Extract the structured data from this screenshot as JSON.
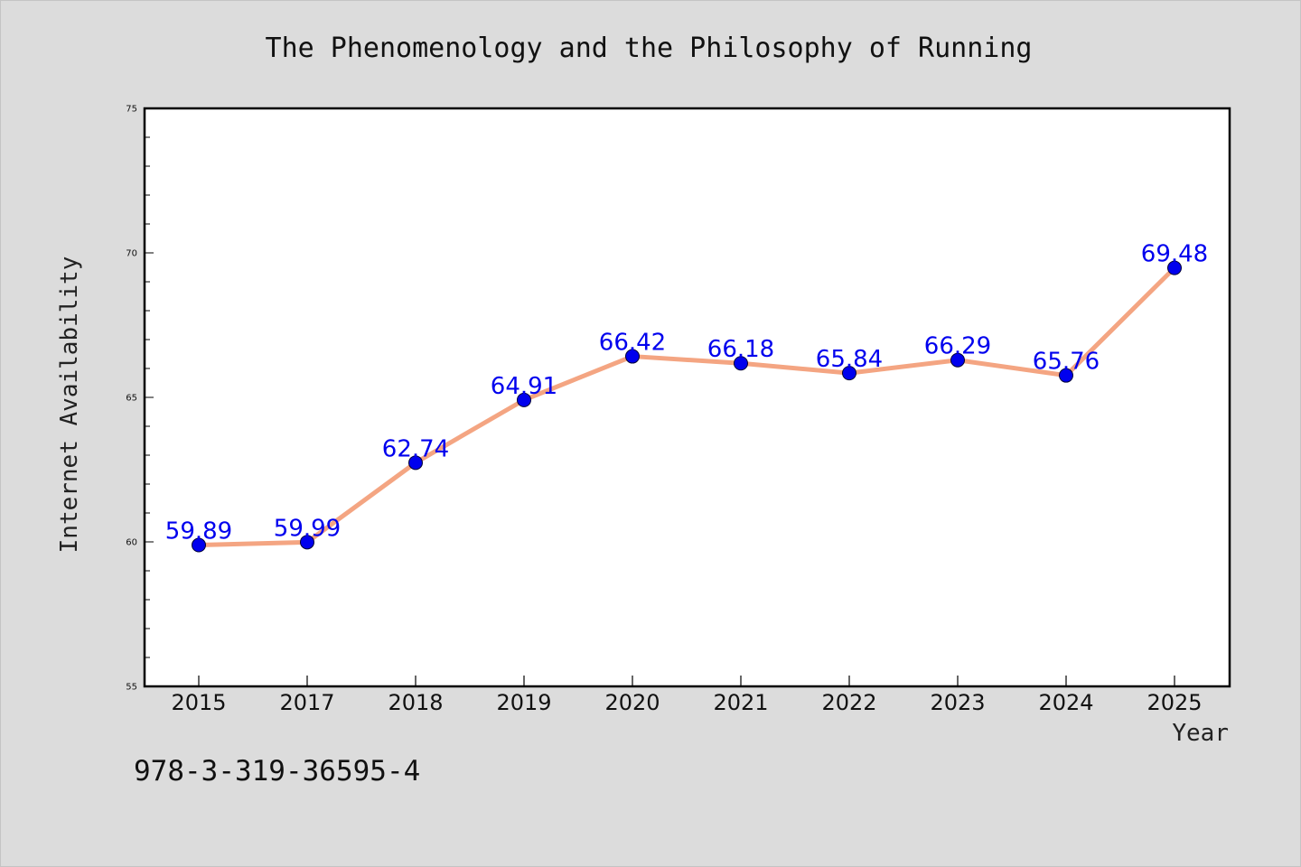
{
  "chart_data": {
    "type": "line",
    "title": "The Phenomenology and the Philosophy of Running",
    "xlabel": "Year",
    "ylabel": "Internet Availability",
    "categories": [
      "2015",
      "2017",
      "2018",
      "2019",
      "2020",
      "2021",
      "2022",
      "2023",
      "2024",
      "2025"
    ],
    "series": [
      {
        "values": [
          59.89,
          59.99,
          62.74,
          64.91,
          66.42,
          66.18,
          65.84,
          66.29,
          65.76,
          69.48
        ],
        "data_labels": [
          "59.89",
          "59.99",
          "62.74",
          "64.91",
          "66.42",
          "66.18",
          "65.84",
          "66.29",
          "65.76",
          "69.48"
        ]
      }
    ],
    "ylim": [
      55,
      75
    ],
    "yticks": [
      "55",
      "60",
      "65",
      "70",
      "75"
    ],
    "grid": false,
    "legend": "none",
    "colors": {
      "line": "#f4a582",
      "marker": "#0000ee",
      "data_label": "#0000ee",
      "plot_background": "#ffffff",
      "figure_background": "#dcdcdc"
    }
  },
  "footer": {
    "isbn": "978-3-319-36595-4"
  }
}
